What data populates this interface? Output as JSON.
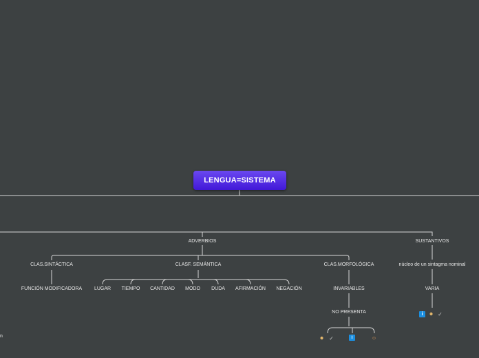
{
  "root": {
    "label": "LENGUA=SISTEMA"
  },
  "branches": {
    "adverbios": "ADVERBIOS",
    "sustantivos": "SUSTANTIVOS"
  },
  "adverbios": {
    "clas_sintactica": "CLAS.SINTÁCTICA",
    "clasf_semantica": "CLASF. SEMÁNTICA",
    "clas_morfologica": "CLAS.MORFOLÓGICA",
    "funcion": "FUNCIÓN MODIFICADORA",
    "semantica_items": [
      "LUGAR",
      "TIEMPO",
      "CANTIDAD",
      "MODO",
      "DUDA",
      "AFIRMACIÓN",
      "NEGACIÓN"
    ],
    "invariables": "INVARIABLES",
    "no_presenta": "NO PRESENTA"
  },
  "sustantivos": {
    "nucleo": "núcleo de un sintagma nominal",
    "varia": "VARIA"
  },
  "offscreen_fragment": "n",
  "icons": [
    "info-icon",
    "person-icon",
    "checkmark-icon",
    "teacher-icon"
  ]
}
